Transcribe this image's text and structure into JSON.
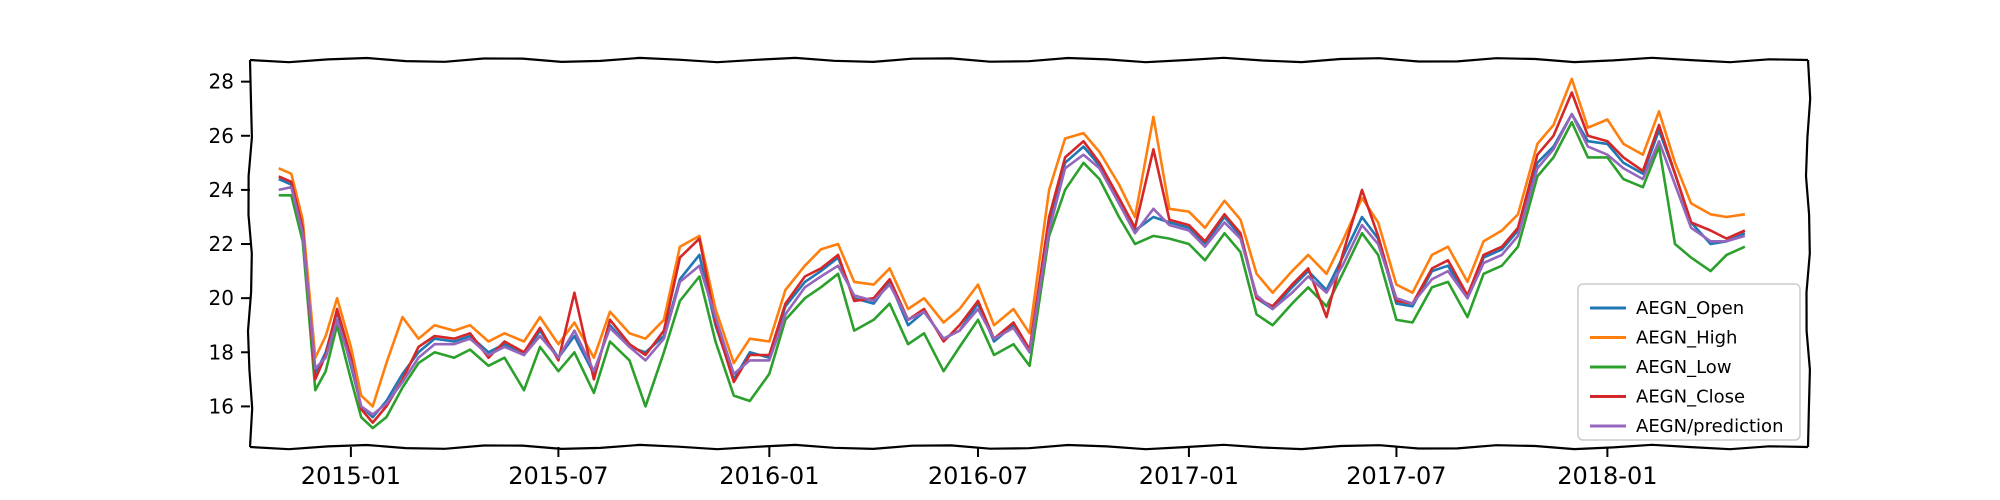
{
  "chart_data": {
    "type": "line",
    "title": "",
    "xlabel": "",
    "ylabel": "",
    "xlim": [
      "2014-10-05",
      "2018-06-25"
    ],
    "ylim": [
      14.5,
      28.8
    ],
    "yticks": [
      16,
      18,
      20,
      22,
      24,
      26,
      28
    ],
    "xticks": [
      {
        "date": "2015-01-01",
        "label": "2015-01"
      },
      {
        "date": "2015-07-01",
        "label": "2015-07"
      },
      {
        "date": "2016-01-01",
        "label": "2016-01"
      },
      {
        "date": "2016-07-01",
        "label": "2016-07"
      },
      {
        "date": "2017-01-01",
        "label": "2017-01"
      },
      {
        "date": "2017-07-01",
        "label": "2017-07"
      },
      {
        "date": "2018-01-01",
        "label": "2018-01"
      }
    ],
    "grid": false,
    "legend_position": "lower-right",
    "x": [
      "2014-10-30",
      "2014-11-10",
      "2014-11-20",
      "2014-12-01",
      "2014-12-10",
      "2014-12-20",
      "2015-01-01",
      "2015-01-10",
      "2015-01-20",
      "2015-02-01",
      "2015-02-15",
      "2015-03-01",
      "2015-03-15",
      "2015-04-01",
      "2015-04-15",
      "2015-05-01",
      "2015-05-15",
      "2015-06-01",
      "2015-06-15",
      "2015-07-01",
      "2015-07-15",
      "2015-08-01",
      "2015-08-15",
      "2015-09-01",
      "2015-09-15",
      "2015-10-01",
      "2015-10-15",
      "2015-11-01",
      "2015-11-15",
      "2015-12-01",
      "2015-12-15",
      "2016-01-01",
      "2016-01-15",
      "2016-02-01",
      "2016-02-15",
      "2016-03-01",
      "2016-03-15",
      "2016-04-01",
      "2016-04-15",
      "2016-05-01",
      "2016-05-15",
      "2016-06-01",
      "2016-06-15",
      "2016-07-01",
      "2016-07-15",
      "2016-08-01",
      "2016-08-15",
      "2016-09-01",
      "2016-09-15",
      "2016-10-01",
      "2016-10-15",
      "2016-11-01",
      "2016-11-15",
      "2016-12-01",
      "2016-12-15",
      "2017-01-01",
      "2017-01-15",
      "2017-02-01",
      "2017-02-15",
      "2017-03-01",
      "2017-03-15",
      "2017-04-01",
      "2017-04-15",
      "2017-05-01",
      "2017-05-15",
      "2017-06-01",
      "2017-06-15",
      "2017-07-01",
      "2017-07-15",
      "2017-08-01",
      "2017-08-15",
      "2017-09-01",
      "2017-09-15",
      "2017-10-01",
      "2017-10-15",
      "2017-11-01",
      "2017-11-15",
      "2017-12-01",
      "2017-12-15",
      "2018-01-01",
      "2018-01-15",
      "2018-02-01",
      "2018-02-15",
      "2018-03-01",
      "2018-03-15",
      "2018-04-01",
      "2018-04-15",
      "2018-05-01"
    ],
    "series": [
      {
        "name": "AEGN_Open",
        "color": "#1f77b4",
        "values": [
          24.4,
          24.2,
          22.5,
          17.2,
          18.0,
          19.5,
          17.5,
          16.0,
          15.6,
          16.2,
          17.2,
          18.0,
          18.5,
          18.4,
          18.6,
          18.0,
          18.3,
          17.9,
          18.8,
          17.8,
          18.6,
          17.2,
          19.0,
          18.2,
          18.0,
          18.6,
          20.7,
          21.6,
          19.0,
          17.0,
          18.0,
          17.8,
          19.7,
          20.6,
          21.0,
          21.5,
          20.0,
          19.8,
          20.6,
          19.0,
          19.5,
          18.5,
          18.8,
          19.8,
          18.4,
          19.0,
          18.0,
          22.8,
          25.0,
          25.6,
          24.9,
          23.5,
          22.5,
          23.0,
          22.8,
          22.6,
          22.0,
          23.0,
          22.3,
          20.0,
          19.6,
          20.4,
          21.0,
          20.3,
          21.5,
          23.0,
          22.2,
          19.8,
          19.7,
          21.0,
          21.2,
          20.0,
          21.5,
          21.8,
          22.5,
          25.0,
          25.6,
          26.8,
          25.8,
          25.7,
          25.0,
          24.6,
          26.2,
          24.6,
          22.8,
          22.0,
          22.1,
          22.4
        ]
      },
      {
        "name": "AEGN_High",
        "color": "#ff7f0e",
        "values": [
          24.8,
          24.6,
          22.9,
          17.8,
          18.6,
          20.0,
          18.2,
          16.4,
          16.0,
          17.6,
          19.3,
          18.5,
          19.0,
          18.8,
          19.0,
          18.4,
          18.7,
          18.4,
          19.3,
          18.3,
          19.1,
          17.8,
          19.5,
          18.7,
          18.5,
          19.2,
          21.9,
          22.3,
          19.6,
          17.6,
          18.5,
          18.4,
          20.3,
          21.2,
          21.8,
          22.0,
          20.6,
          20.5,
          21.1,
          19.6,
          20.0,
          19.1,
          19.6,
          20.5,
          19.0,
          19.6,
          18.7,
          24.0,
          25.9,
          26.1,
          25.4,
          24.2,
          23.0,
          26.7,
          23.3,
          23.2,
          22.6,
          23.6,
          22.9,
          20.9,
          20.2,
          21.0,
          21.6,
          20.9,
          22.1,
          23.7,
          22.8,
          20.5,
          20.2,
          21.6,
          21.9,
          20.6,
          22.1,
          22.5,
          23.1,
          25.7,
          26.4,
          28.1,
          26.3,
          26.6,
          25.7,
          25.3,
          26.9,
          25.0,
          23.5,
          23.1,
          23.0,
          23.1
        ]
      },
      {
        "name": "AEGN_Low",
        "color": "#2ca02c",
        "values": [
          23.8,
          23.8,
          22.1,
          16.6,
          17.3,
          19.0,
          17.0,
          15.6,
          15.2,
          15.6,
          16.7,
          17.6,
          18.0,
          17.8,
          18.1,
          17.5,
          17.8,
          16.6,
          18.2,
          17.3,
          18.0,
          16.5,
          18.4,
          17.7,
          16.0,
          18.0,
          19.9,
          20.8,
          18.4,
          16.4,
          16.2,
          17.2,
          19.2,
          20.0,
          20.4,
          20.9,
          18.8,
          19.2,
          19.8,
          18.3,
          18.7,
          17.3,
          18.2,
          19.2,
          17.9,
          18.3,
          17.5,
          22.3,
          24.0,
          25.0,
          24.4,
          23.0,
          22.0,
          22.3,
          22.2,
          22.0,
          21.4,
          22.4,
          21.7,
          19.4,
          19.0,
          19.8,
          20.4,
          19.7,
          20.9,
          22.4,
          21.6,
          19.2,
          19.1,
          20.4,
          20.6,
          19.3,
          20.9,
          21.2,
          21.9,
          24.5,
          25.2,
          26.5,
          25.2,
          25.2,
          24.4,
          24.1,
          25.6,
          22.0,
          21.5,
          21.0,
          21.6,
          21.9
        ]
      },
      {
        "name": "AEGN_Close",
        "color": "#d62728",
        "values": [
          24.5,
          24.3,
          22.6,
          17.0,
          17.9,
          19.6,
          17.8,
          15.9,
          15.4,
          16.0,
          17.0,
          18.2,
          18.6,
          18.5,
          18.7,
          17.8,
          18.4,
          18.0,
          18.9,
          17.7,
          20.2,
          17.0,
          19.2,
          18.3,
          17.9,
          18.8,
          21.5,
          22.2,
          19.1,
          16.9,
          17.9,
          17.9,
          19.8,
          20.8,
          21.1,
          21.6,
          19.9,
          20.0,
          20.7,
          19.2,
          19.6,
          18.4,
          19.0,
          19.9,
          18.5,
          19.1,
          18.1,
          23.0,
          25.2,
          25.8,
          25.0,
          23.7,
          22.6,
          25.5,
          22.9,
          22.7,
          22.1,
          23.1,
          22.4,
          20.0,
          19.7,
          20.5,
          21.1,
          19.3,
          21.6,
          24.0,
          22.3,
          19.9,
          19.8,
          21.1,
          21.4,
          20.1,
          21.6,
          21.9,
          22.6,
          25.3,
          26.0,
          27.6,
          26.0,
          25.8,
          25.2,
          24.7,
          26.4,
          24.6,
          22.8,
          22.5,
          22.2,
          22.5
        ]
      },
      {
        "name": "AEGN/prediction",
        "color": "#9467bd",
        "values": [
          24.0,
          24.1,
          22.4,
          17.4,
          17.8,
          19.2,
          17.6,
          16.0,
          15.7,
          16.1,
          16.9,
          17.8,
          18.3,
          18.3,
          18.5,
          17.9,
          18.2,
          17.9,
          18.6,
          17.8,
          18.8,
          17.3,
          18.9,
          18.2,
          17.7,
          18.5,
          20.6,
          21.2,
          19.3,
          17.2,
          17.7,
          17.7,
          19.4,
          20.4,
          20.8,
          21.2,
          20.1,
          19.9,
          20.5,
          19.2,
          19.5,
          18.5,
          18.8,
          19.6,
          18.5,
          18.9,
          18.0,
          22.5,
          24.8,
          25.3,
          24.8,
          23.5,
          22.4,
          23.3,
          22.7,
          22.5,
          21.9,
          22.8,
          22.2,
          20.1,
          19.6,
          20.2,
          20.8,
          20.2,
          21.2,
          22.7,
          22.0,
          20.0,
          19.8,
          20.7,
          21.0,
          20.0,
          21.3,
          21.6,
          22.3,
          24.8,
          25.5,
          26.8,
          25.6,
          25.3,
          24.8,
          24.4,
          25.8,
          24.2,
          22.6,
          22.1,
          22.1,
          22.3
        ]
      }
    ]
  }
}
